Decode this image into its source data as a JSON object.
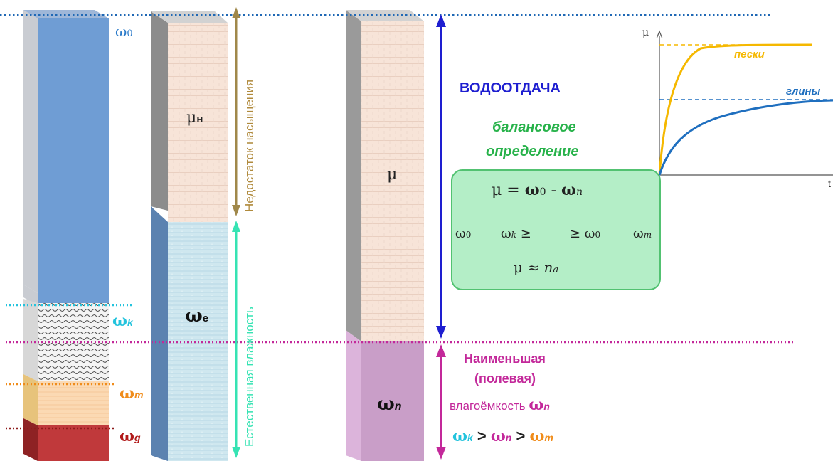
{
  "labels": {
    "omega_0": "ω0",
    "omega_k": "ωk",
    "omega_m": "ωm",
    "omega_g": "ωg",
    "mu_n": "μн",
    "omega_e": "ωe",
    "mu": "μ",
    "omega_n": "ωn"
  },
  "vertical_labels": {
    "saturation_deficit": "Недостаток насыщения",
    "natural_moisture": "Естественная влажность"
  },
  "text": {
    "water_yield": "ВОДООТДАЧА",
    "balance_line1": "балансовое",
    "balance_line2": "определение",
    "min_capacity_line1": "Наименьшая",
    "min_capacity_line2": "(полевая)",
    "min_capacity_line3": "влагоёмкость ωn",
    "inequality": "ωk > ωn > ωm"
  },
  "formula_box": {
    "line1": "μ = ω0 - ωn",
    "line2_a": "ω0",
    "line2_b": "ωk ≥",
    "line2_c": "≥ ω0",
    "line2_d": "ωm",
    "line3": "μ ≈ na"
  },
  "chart_data": {
    "type": "line",
    "ylabel": "μ",
    "xlabel": "t",
    "series": [
      {
        "name": "пески",
        "color": "#f5b800"
      },
      {
        "name": "глины",
        "color": "#1f6fbf"
      }
    ]
  },
  "colors": {
    "blue_column": "#6f9dd4",
    "red_layer": "#c0393b",
    "orange_layer": "#fbd9b3",
    "pink_omega_n": "#c99ec8",
    "cyan": "#23c3dd",
    "magenta": "#c3289a",
    "orange": "#f08c1a",
    "dark_red": "#b11a1a",
    "navy": "#1e1ed0",
    "green_text": "#27b24a",
    "olive_arrow": "#a0884a",
    "teal_arrow": "#36e3b3"
  }
}
